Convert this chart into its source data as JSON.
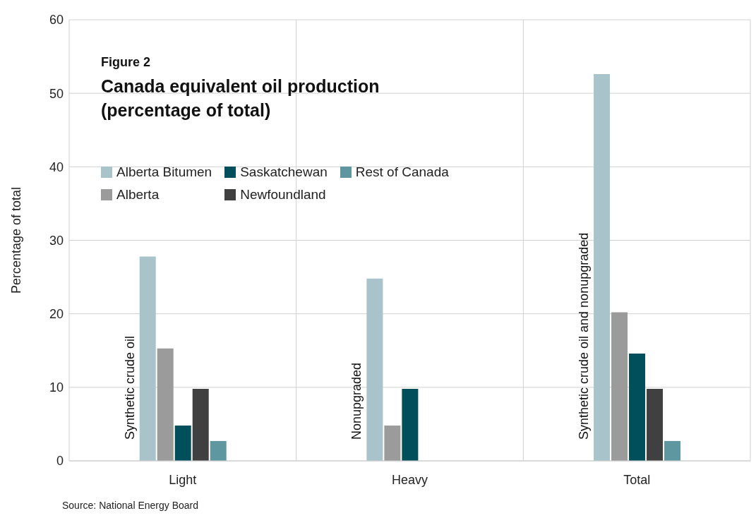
{
  "chart_data": {
    "type": "bar",
    "subtitle": "Figure 2",
    "title": "Canada equivalent oil production (percentage of total)",
    "ylabel": "Percentage of total",
    "categories": [
      "Light",
      "Heavy",
      "Total"
    ],
    "series": [
      {
        "name": "Alberta Bitumen",
        "color": "#a8c4ca",
        "values": [
          27.8,
          24.8,
          52.6
        ]
      },
      {
        "name": "Alberta",
        "color": "#9b9b9b",
        "values": [
          15.3,
          4.8,
          20.2
        ]
      },
      {
        "name": "Saskatchewan",
        "color": "#004f5b",
        "values": [
          4.8,
          9.8,
          14.6
        ]
      },
      {
        "name": "Newfoundland",
        "color": "#404040",
        "values": [
          9.8,
          null,
          9.8
        ]
      },
      {
        "name": "Rest of Canada",
        "color": "#5f97a0",
        "values": [
          2.7,
          null,
          2.7
        ]
      }
    ],
    "ylim": [
      0,
      60
    ],
    "yticks": [
      0,
      10,
      20,
      30,
      40,
      50,
      60
    ],
    "grid": true,
    "legend": "top left",
    "annotations": [
      "Synthetic crude oil",
      "Nonupgraded",
      "Synthetic crude oil and nonupgraded",
      "Source: National Energy Board"
    ]
  }
}
